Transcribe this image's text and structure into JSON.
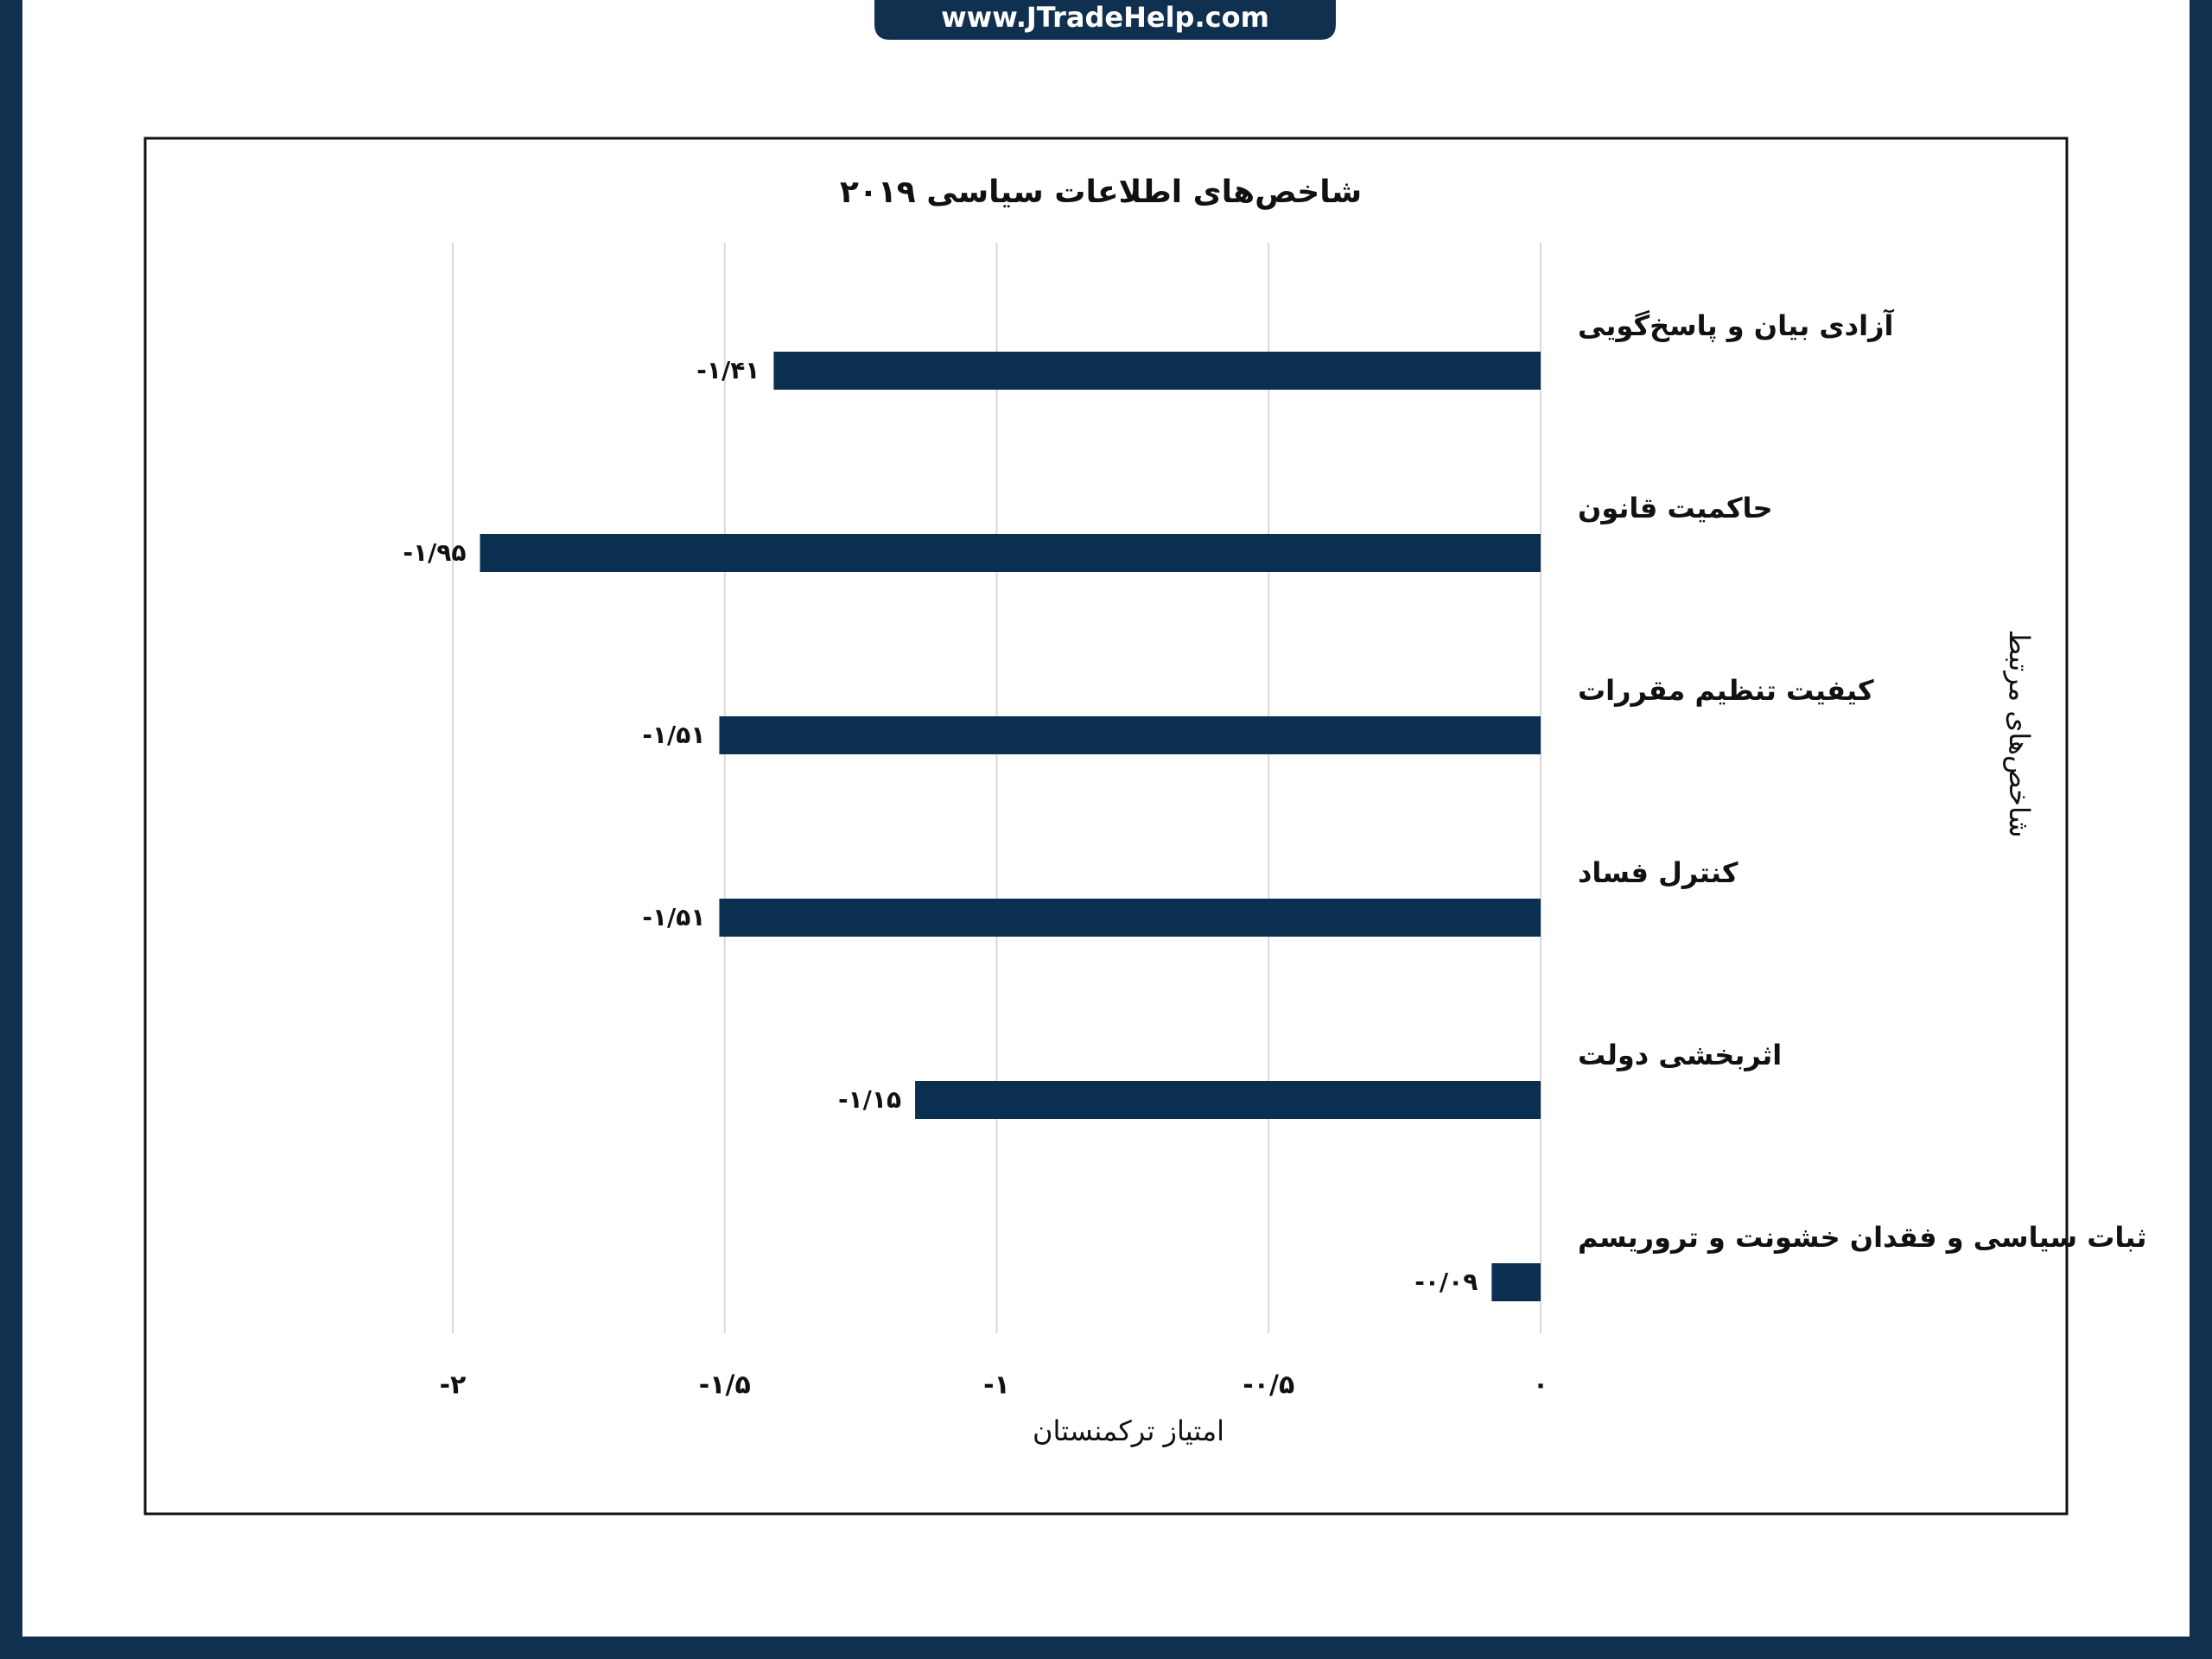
{
  "banner": "www.JTradeHelp.com",
  "chart_data": {
    "type": "barh",
    "title": "شاخص‌های اطلاعات سیاسی ۲۰۱۹",
    "x_label": "امتیاز ترکمنستان",
    "y_label": "شاخص‌های مرتبط",
    "categories": [
      "آزادی بیان و پاسخ‌گویی",
      "حاکمیت قانون",
      "کیفیت تنظیم مقررات",
      "کنترل فساد",
      "اثربخشی دولت",
      "ثبات سیاسی و فقدان خشونت و تروریسم"
    ],
    "values": [
      -1.41,
      -1.95,
      -1.51,
      -1.51,
      -1.15,
      -0.09
    ],
    "value_labels": [
      "-۱/۴۱",
      "-۱/۹۵",
      "-۱/۵۱",
      "-۱/۵۱",
      "-۱/۱۵",
      "-۰/۰۹"
    ],
    "color": "#0b2f50",
    "xlim": [
      -2,
      0
    ],
    "xticks": [
      {
        "value": -2,
        "label": "-۲"
      },
      {
        "value": -1.5,
        "label": "-۱/۵"
      },
      {
        "value": -1,
        "label": "-۱"
      },
      {
        "value": -0.5,
        "label": "-۰/۵"
      },
      {
        "value": 0,
        "label": "۰"
      }
    ],
    "grid": true
  }
}
